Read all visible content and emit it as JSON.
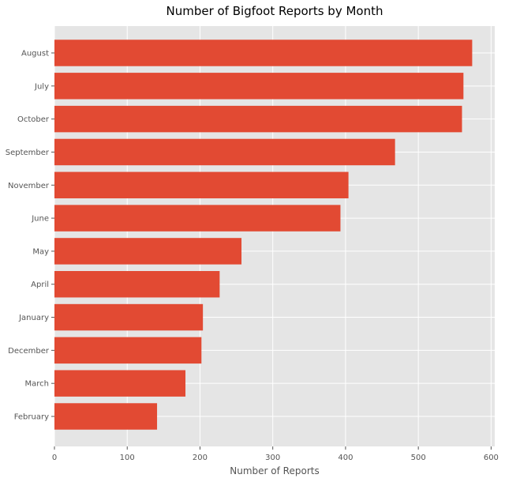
{
  "chart_data": {
    "type": "bar",
    "orientation": "horizontal",
    "title": "Number of Bigfoot Reports by Month",
    "xlabel": "Number of Reports",
    "ylabel": "",
    "categories": [
      "August",
      "July",
      "October",
      "September",
      "November",
      "June",
      "May",
      "April",
      "January",
      "December",
      "March",
      "February"
    ],
    "values": [
      574,
      562,
      560,
      468,
      404,
      393,
      257,
      227,
      204,
      202,
      180,
      141
    ],
    "xlim": [
      0,
      605
    ],
    "xticks": [
      0,
      100,
      200,
      300,
      400,
      500,
      600
    ],
    "grid": true,
    "bar_color": "#e24a33",
    "background_color": "#e5e5e5",
    "grid_color": "#ffffff"
  }
}
